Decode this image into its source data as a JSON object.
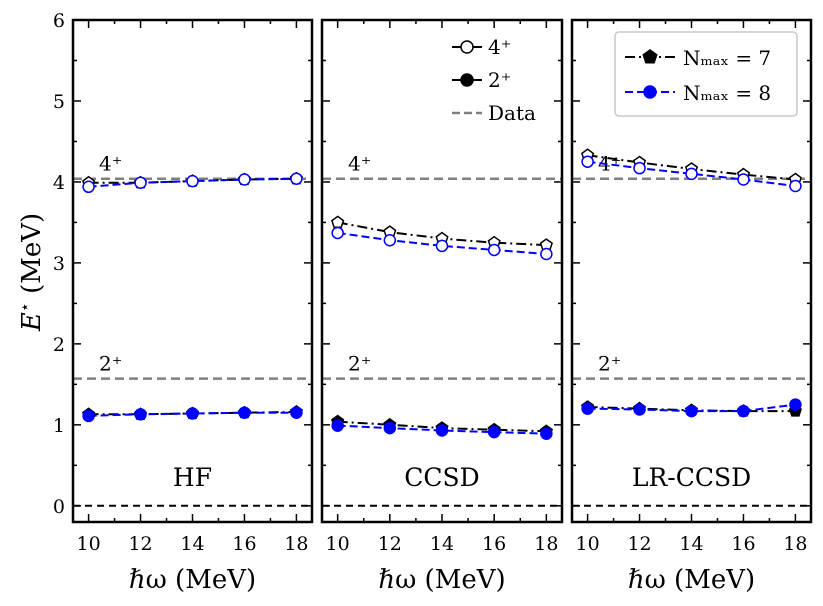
{
  "figure": {
    "ylabel": "E* (MeV)",
    "xlabel": "ℏω (MeV)",
    "colors": {
      "nmax7": "#000000",
      "nmax8": "#0000ff",
      "data": "#808080",
      "zero": "#000000"
    }
  },
  "legends": {
    "state": [
      {
        "label": "4⁺",
        "marker": "open-circle",
        "line": "solid"
      },
      {
        "label": "2⁺",
        "marker": "filled-circle",
        "line": "solid"
      },
      {
        "label": "Data",
        "marker": "none",
        "line": "dashed-gray"
      }
    ],
    "nmax": [
      {
        "label": "Nₘₐₓ = 7",
        "marker": "pentagon",
        "color": "#000000",
        "line": "dashdot"
      },
      {
        "label": "Nₘₐₓ = 8",
        "marker": "circle",
        "color": "#0000ff",
        "line": "dashed"
      }
    ]
  },
  "chart_data": [
    {
      "type": "line",
      "title": "HF",
      "x": [
        10,
        12,
        14,
        16,
        18
      ],
      "xticks": [
        "10",
        "12",
        "14",
        "16",
        "18"
      ],
      "yticks": [
        "0",
        "1",
        "2",
        "3",
        "4",
        "5",
        "6"
      ],
      "ylim": [
        -0.2,
        6
      ],
      "xlim": [
        9.4,
        18.6
      ],
      "data_levels": [
        {
          "label": "4⁺",
          "value": 4.04
        },
        {
          "label": "2⁺",
          "value": 1.57
        }
      ],
      "series": [
        {
          "name": "4⁺, Nmax = 7",
          "values": [
            3.99,
            3.99,
            4.01,
            4.03,
            4.04
          ]
        },
        {
          "name": "4⁺, Nmax = 8",
          "values": [
            3.94,
            3.99,
            4.01,
            4.03,
            4.04
          ]
        },
        {
          "name": "2⁺, Nmax = 7",
          "values": [
            1.13,
            1.13,
            1.14,
            1.15,
            1.16
          ]
        },
        {
          "name": "2⁺, Nmax = 8",
          "values": [
            1.11,
            1.13,
            1.14,
            1.15,
            1.15
          ]
        }
      ]
    },
    {
      "type": "line",
      "title": "CCSD",
      "x": [
        10,
        12,
        14,
        16,
        18
      ],
      "xticks": [
        "10",
        "12",
        "14",
        "16",
        "18"
      ],
      "ylim": [
        -0.2,
        6
      ],
      "xlim": [
        9.4,
        18.6
      ],
      "data_levels": [
        {
          "label": "4⁺",
          "value": 4.04
        },
        {
          "label": "2⁺",
          "value": 1.57
        }
      ],
      "series": [
        {
          "name": "4⁺, Nmax = 7",
          "values": [
            3.5,
            3.38,
            3.3,
            3.25,
            3.22
          ]
        },
        {
          "name": "4⁺, Nmax = 8",
          "values": [
            3.37,
            3.28,
            3.21,
            3.16,
            3.11
          ]
        },
        {
          "name": "2⁺, Nmax = 7",
          "values": [
            1.04,
            1.0,
            0.96,
            0.94,
            0.92
          ]
        },
        {
          "name": "2⁺, Nmax = 8",
          "values": [
            0.99,
            0.96,
            0.93,
            0.91,
            0.89
          ]
        }
      ]
    },
    {
      "type": "line",
      "title": "LR-CCSD",
      "x": [
        10,
        12,
        14,
        16,
        18
      ],
      "xticks": [
        "10",
        "12",
        "14",
        "16",
        "18"
      ],
      "ylim": [
        -0.2,
        6
      ],
      "xlim": [
        9.4,
        18.6
      ],
      "data_levels": [
        {
          "label": "4⁺",
          "value": 4.04
        },
        {
          "label": "2⁺",
          "value": 1.57
        }
      ],
      "series": [
        {
          "name": "4⁺, Nmax = 7",
          "values": [
            4.33,
            4.24,
            4.16,
            4.09,
            4.03
          ]
        },
        {
          "name": "4⁺, Nmax = 8",
          "values": [
            4.25,
            4.17,
            4.1,
            4.03,
            3.95
          ]
        },
        {
          "name": "2⁺, Nmax = 7",
          "values": [
            1.22,
            1.2,
            1.18,
            1.17,
            1.17
          ]
        },
        {
          "name": "2⁺, Nmax = 8",
          "values": [
            1.2,
            1.19,
            1.17,
            1.17,
            1.25
          ]
        }
      ]
    }
  ]
}
